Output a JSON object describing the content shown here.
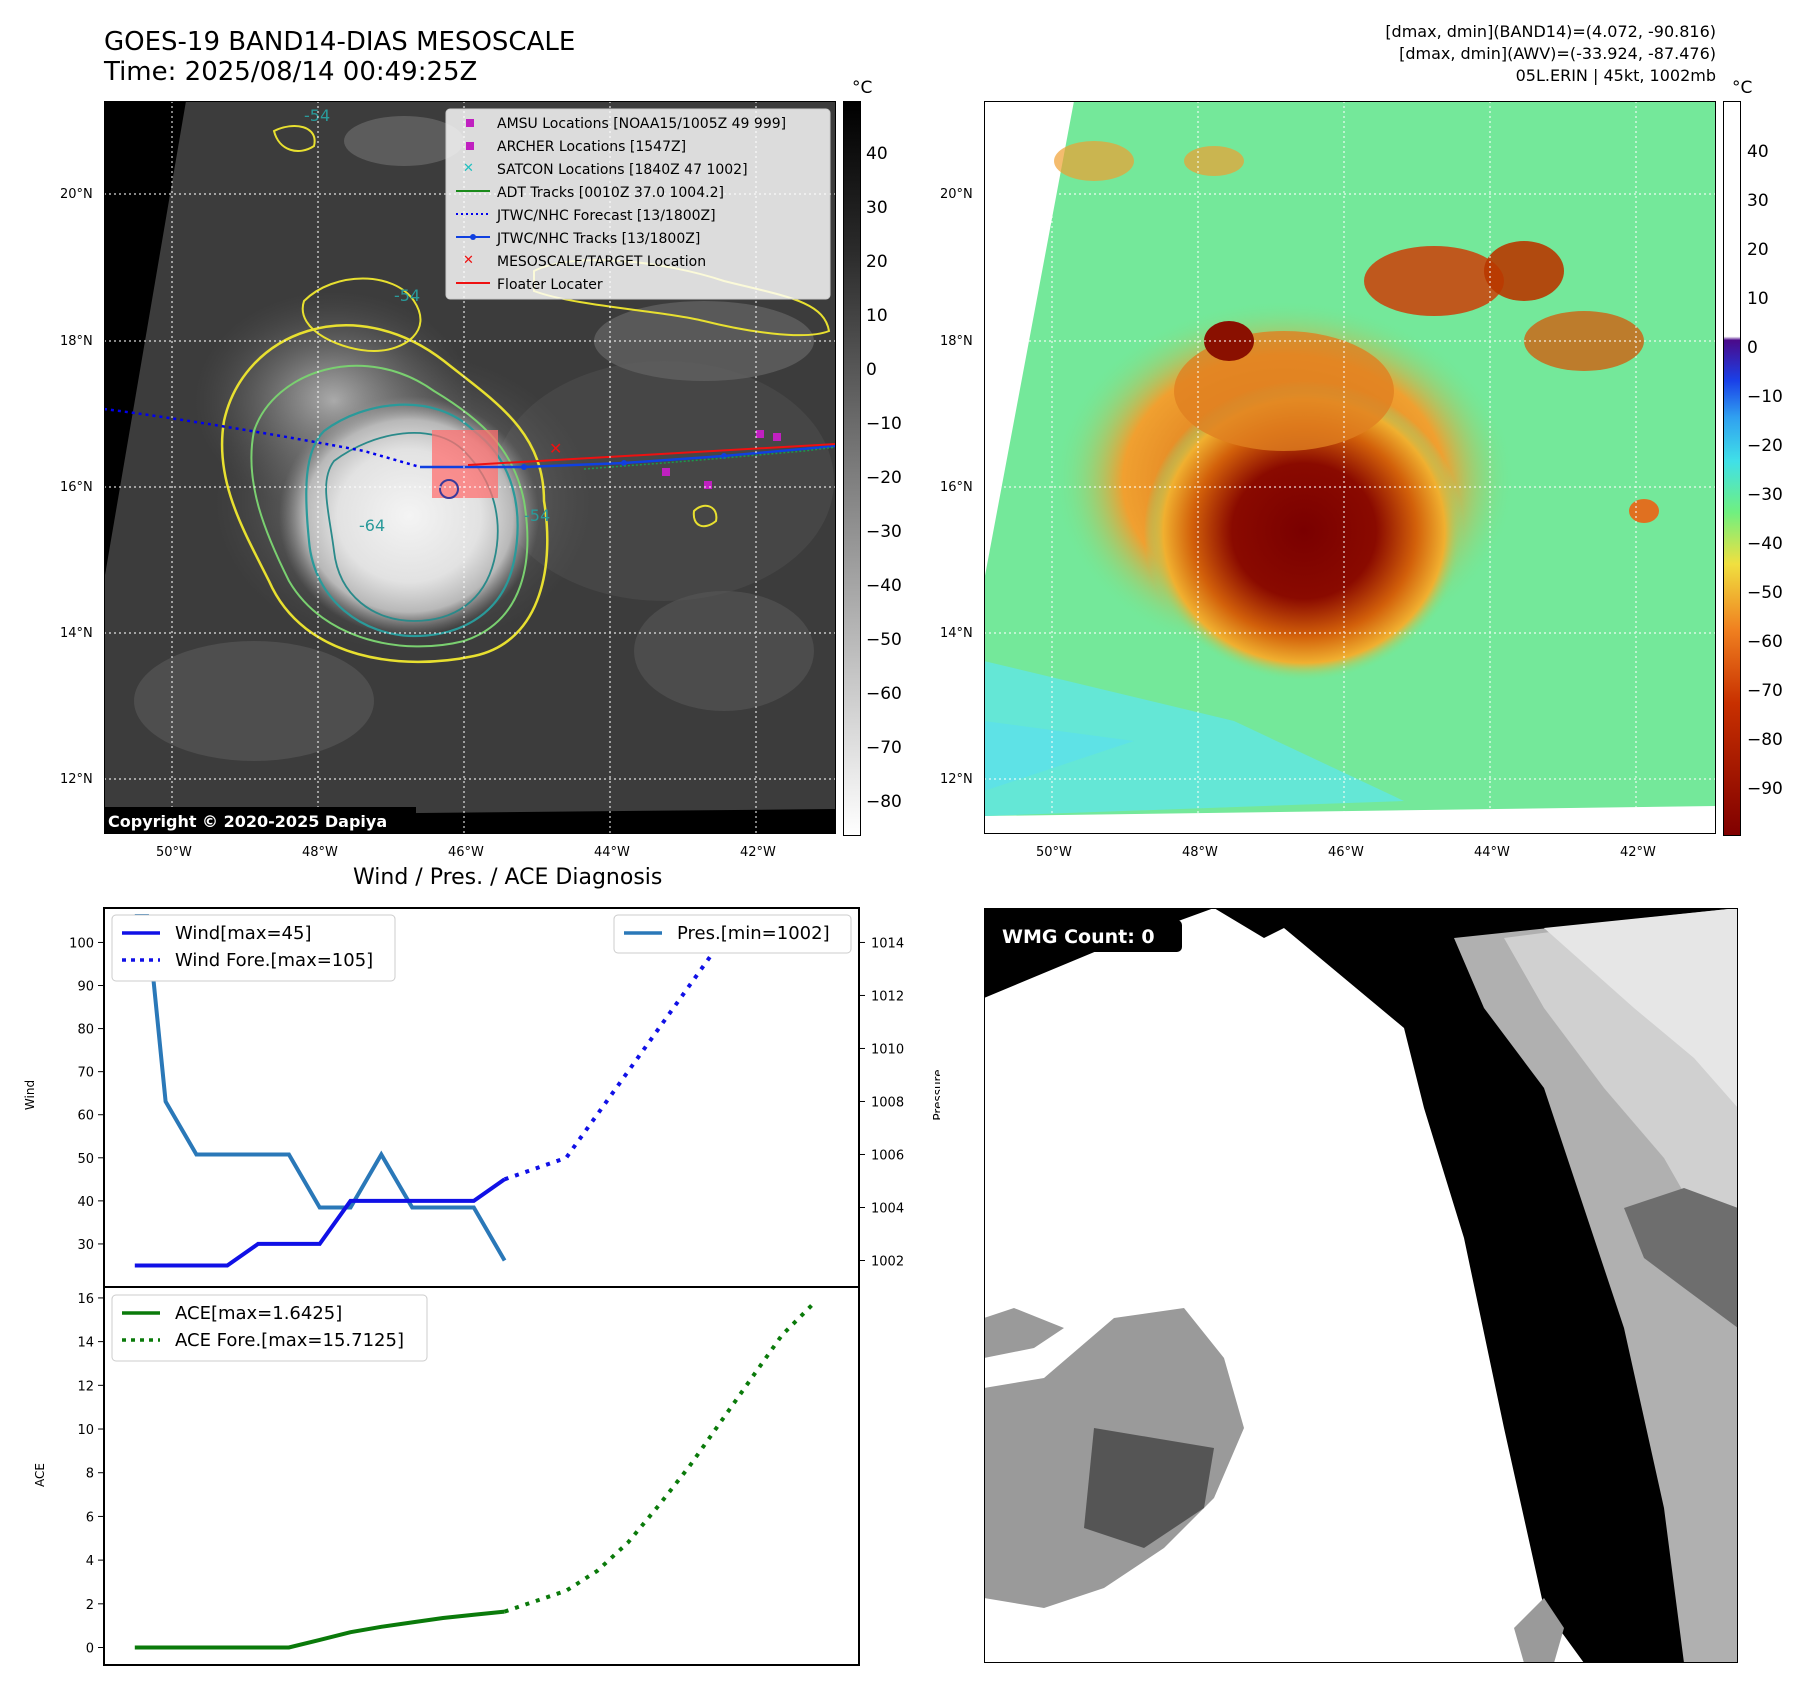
{
  "header": {
    "title_line1": "GOES-19 BAND14-DIAS MESOSCALE",
    "title_line2": "Time: 2025/08/14 00:49:25Z",
    "dmax_band14": "[dmax, dmin](BAND14)=(4.072, -90.816)",
    "dmax_awv": "[dmax, dmin](AWV)=(-33.924, -87.476)",
    "storm_info": "05L.ERIN | 45kt, 1002mb"
  },
  "colors": {
    "wind": "#1010e6",
    "pressure": "#2a78b8",
    "ace": "#0a7a0a",
    "amsu": "#c020c0",
    "archer": "#c020c0",
    "satcon": "#20c0c0",
    "adt": "#1a8a1a",
    "forecast": "#0000ee",
    "track": "#1040e0",
    "target": "#ee1111",
    "floater": "#ee1111"
  },
  "map": {
    "lat_labels": [
      "20°N",
      "18°N",
      "16°N",
      "14°N",
      "12°N"
    ],
    "lon_labels": [
      "50°W",
      "48°W",
      "46°W",
      "44°W",
      "42°W"
    ],
    "unit": "°C",
    "copyright": "Copyright © 2020-2025 Dapiya",
    "contour_labels": [
      "-64",
      "-54",
      "-54",
      "-54"
    ],
    "legend": [
      {
        "label": "AMSU Locations [NOAA15/1005Z 49 999]",
        "icon": "square-marker"
      },
      {
        "label": "ARCHER Locations [1547Z]",
        "icon": "square-marker"
      },
      {
        "label": "SATCON Locations [1840Z 47 1002]",
        "icon": "x-marker"
      },
      {
        "label": "ADT Tracks [0010Z 37.0 1004.2]",
        "icon": "solid-line"
      },
      {
        "label": "JTWC/NHC Forecast [13/1800Z]",
        "icon": "dotted-line"
      },
      {
        "label": "JTWC/NHC Tracks [13/1800Z]",
        "icon": "dot-line"
      },
      {
        "label": "MESOSCALE/TARGET Location",
        "icon": "x-marker"
      },
      {
        "label": "Floater Locater",
        "icon": "solid-line"
      }
    ],
    "cbar_ticks": [
      "40",
      "30",
      "20",
      "10",
      "0",
      "−10",
      "−20",
      "−30",
      "−40",
      "−50",
      "−60",
      "−70",
      "−80"
    ],
    "cbar_ticks_right": [
      "40",
      "30",
      "20",
      "10",
      "0",
      "−10",
      "−20",
      "−30",
      "−40",
      "−50",
      "−60",
      "−70",
      "−80",
      "−90"
    ]
  },
  "wmg": {
    "label": "WMG Count: 0"
  },
  "diagnosis_title": "Wind / Pres. / ACE Diagnosis",
  "chart_data": [
    {
      "type": "line",
      "title": "Wind / Pres. / ACE Diagnosis",
      "ylabel": "Wind",
      "ylabel_right": "Pressure",
      "ylim": [
        20,
        108
      ],
      "ylim_right": [
        1001,
        1015.3
      ],
      "yticks": [
        30,
        40,
        50,
        60,
        70,
        80,
        90,
        100
      ],
      "yticks_right": [
        1002,
        1004,
        1006,
        1008,
        1010,
        1012,
        1014
      ],
      "x": [
        0,
        1,
        2,
        3,
        4,
        5,
        6,
        7,
        8,
        9,
        10,
        11,
        12,
        13,
        14,
        15,
        16,
        17,
        18,
        19,
        20,
        21,
        22,
        23
      ],
      "series": [
        {
          "name": "Wind[max=45]",
          "style": "solid",
          "axis": "left",
          "x": [
            0,
            1,
            2,
            3,
            4,
            5,
            6,
            7,
            8,
            9,
            10,
            11,
            12
          ],
          "values": [
            25,
            25,
            25,
            25,
            30,
            30,
            30,
            40,
            40,
            40,
            40,
            40,
            45
          ]
        },
        {
          "name": "Wind Fore.[max=105]",
          "style": "dotted",
          "axis": "left",
          "x": [
            12,
            14,
            15,
            16,
            17,
            18,
            19,
            20,
            21,
            22
          ],
          "values": [
            45,
            50,
            60,
            70,
            80,
            90,
            100,
            100,
            105,
            105
          ]
        },
        {
          "name": "Pres.[min=1002]",
          "style": "solid",
          "axis": "right",
          "x": [
            0,
            0.4,
            1,
            2,
            3,
            4,
            5,
            6,
            7,
            8,
            9,
            10,
            11,
            12
          ],
          "values": [
            1015,
            1015,
            1008,
            1006,
            1006,
            1006,
            1006,
            1004,
            1004,
            1006,
            1004,
            1004,
            1004,
            1002
          ]
        }
      ]
    },
    {
      "type": "line",
      "ylabel": "ACE",
      "ylim": [
        -0.8,
        16.5
      ],
      "yticks": [
        0,
        2,
        4,
        6,
        8,
        10,
        12,
        14,
        16
      ],
      "series": [
        {
          "name": "ACE[max=1.6425]",
          "style": "solid",
          "x": [
            0,
            1,
            2,
            3,
            4,
            5,
            6,
            7,
            8,
            9,
            10,
            11,
            12
          ],
          "values": [
            0,
            0,
            0,
            0,
            0,
            0,
            0.35,
            0.7,
            0.95,
            1.15,
            1.35,
            1.5,
            1.6425
          ]
        },
        {
          "name": "ACE Fore.[max=15.7125]",
          "style": "dotted",
          "x": [
            12,
            14,
            15,
            16,
            17,
            18,
            19,
            20,
            21,
            22
          ],
          "values": [
            1.6425,
            2.6,
            3.5,
            4.8,
            6.5,
            8.3,
            10.3,
            12.3,
            14.3,
            15.7125
          ]
        }
      ]
    }
  ]
}
